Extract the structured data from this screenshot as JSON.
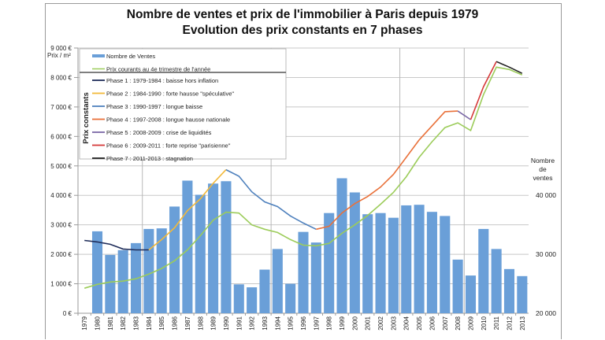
{
  "chart_data": {
    "type": "bar+line",
    "title": "Nombre de ventes et prix de l'immobilier à Paris depuis 1979",
    "subtitle": "Evolution des prix constants en 7 phases",
    "ylabel_left": "Prix / m²",
    "ylabel_right": [
      "Nombre",
      "de",
      "ventes"
    ],
    "legend_group_label": "Prix constants",
    "legend_placement": "top-left",
    "grid": true,
    "ylim_left": [
      0,
      9000
    ],
    "ylim_right": [
      20000,
      65000
    ],
    "left_ticks": [
      "0 €",
      "1 000 €",
      "2 000 €",
      "3 000 €",
      "4 000 €",
      "5 000 €",
      "6 000 €",
      "7 000 €",
      "8 000 €",
      "9 000 €"
    ],
    "right_ticks": [
      "20 000",
      "30 000",
      "40 000"
    ],
    "categories": [
      "1979",
      "1980",
      "1981",
      "1982",
      "1983",
      "1984",
      "1985",
      "1986",
      "1987",
      "1988",
      "1989",
      "1990",
      "1991",
      "1992",
      "1993",
      "1994",
      "1995",
      "1996",
      "1997",
      "1998",
      "1999",
      "2000",
      "2001",
      "2002",
      "2003",
      "2004",
      "2005",
      "2006",
      "2007",
      "2008",
      "2009",
      "2010",
      "2011",
      "2012",
      "2013"
    ],
    "bars": {
      "name": "Nombre de Ventes",
      "color": "#6a9fd8",
      "values": [
        null,
        33900,
        29900,
        30700,
        31900,
        34300,
        34400,
        38100,
        42500,
        40100,
        42000,
        42400,
        24900,
        24400,
        27400,
        30900,
        25000,
        33800,
        32000,
        37000,
        42900,
        40500,
        36800,
        37000,
        36200,
        38300,
        38400,
        37200,
        36500,
        29100,
        26400,
        34300,
        30900,
        27500,
        26300
      ]
    },
    "current_prices": {
      "name": "Prix courants au 4e trimestre de l'année",
      "color": "#9ccc5a",
      "values": [
        850,
        980,
        1060,
        1090,
        1170,
        1330,
        1520,
        1780,
        2150,
        2630,
        3160,
        3430,
        3400,
        3000,
        2850,
        2740,
        2500,
        2310,
        2290,
        2370,
        2710,
        3000,
        3320,
        3700,
        4100,
        4630,
        5290,
        5820,
        6300,
        6460,
        6200,
        7420,
        8350,
        8270,
        8090
      ]
    },
    "phases": [
      {
        "name": "Phase 1 : 1979-1984 : baisse hors inflation",
        "color": "#1f2d5a",
        "years": [
          1979,
          1980,
          1981,
          1982,
          1983,
          1984
        ],
        "values": [
          2470,
          2420,
          2340,
          2180,
          2150,
          2150
        ]
      },
      {
        "name": "Phase 2 : 1984-1990 : forte hausse \"spéculative\"",
        "color": "#f2b93b",
        "years": [
          1984,
          1985,
          1986,
          1987,
          1988,
          1989,
          1990
        ],
        "values": [
          2150,
          2500,
          2900,
          3480,
          3880,
          4410,
          4870
        ]
      },
      {
        "name": "Phase 3 : 1990-1997 : longue baisse",
        "color": "#4f81bd",
        "years": [
          1990,
          1991,
          1992,
          1993,
          1994,
          1995,
          1996,
          1997
        ],
        "values": [
          4870,
          4650,
          4120,
          3780,
          3620,
          3300,
          3060,
          2850
        ]
      },
      {
        "name": "Phase 4 : 1997-2008 : longue hausse nationale",
        "color": "#e9713a",
        "years": [
          1997,
          1998,
          1999,
          2000,
          2001,
          2002,
          2003,
          2004,
          2005,
          2006,
          2007,
          2008
        ],
        "values": [
          2850,
          2950,
          3400,
          3720,
          3960,
          4280,
          4710,
          5290,
          5880,
          6360,
          6840,
          6860
        ]
      },
      {
        "name": "Phase 5 : 2008-2009 : crise de liquidités",
        "color": "#7a68a6",
        "years": [
          2008,
          2009
        ],
        "values": [
          6860,
          6570
        ]
      },
      {
        "name": "Phase 6 : 2009-2011 : forte reprise \"parisienne\"",
        "color": "#d63a3a",
        "years": [
          2009,
          2010,
          2011
        ],
        "values": [
          6570,
          7690,
          8540
        ]
      },
      {
        "name": "Phase 7 : 2011-2013 : stagnation",
        "color": "#222222",
        "years": [
          2011,
          2012,
          2013
        ],
        "values": [
          8540,
          8350,
          8140
        ]
      }
    ]
  }
}
